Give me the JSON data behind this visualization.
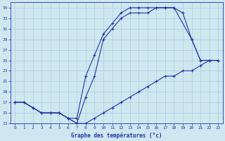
{
  "title": "Graphe des températures (°c)",
  "bg_color": "#cfe8f0",
  "grid_color": "#aaccdd",
  "line_color": "#2233aa",
  "xlim": [
    -0.5,
    23.5
  ],
  "ylim": [
    13,
    36
  ],
  "xticks": [
    0,
    1,
    2,
    3,
    4,
    5,
    6,
    7,
    8,
    9,
    10,
    11,
    12,
    13,
    14,
    15,
    16,
    17,
    18,
    19,
    20,
    21,
    22,
    23
  ],
  "yticks": [
    13,
    15,
    17,
    19,
    21,
    23,
    25,
    27,
    29,
    31,
    33,
    35
  ],
  "line1_x": [
    0,
    1,
    2,
    3,
    4,
    5,
    6,
    7,
    8,
    9,
    10,
    11,
    12,
    13,
    14,
    15,
    16,
    17,
    18,
    20,
    21,
    22,
    23
  ],
  "line1_y": [
    17,
    17,
    16,
    15,
    15,
    15,
    14,
    14,
    22,
    26,
    30,
    32,
    34,
    35,
    35,
    35,
    35,
    35,
    35,
    29,
    25,
    25,
    25
  ],
  "line2_x": [
    0,
    1,
    2,
    3,
    4,
    5,
    6,
    7,
    8,
    9,
    10,
    11,
    12,
    13,
    14,
    15,
    16,
    17,
    18,
    19,
    20,
    21,
    22,
    23
  ],
  "line2_y": [
    17,
    17,
    16,
    15,
    15,
    15,
    14,
    13,
    18,
    22,
    29,
    31,
    33,
    34,
    34,
    34,
    35,
    35,
    35,
    34,
    29,
    25,
    25,
    25
  ],
  "line3_x": [
    0,
    1,
    2,
    3,
    4,
    5,
    6,
    7,
    8,
    9,
    10,
    11,
    12,
    13,
    14,
    15,
    16,
    17,
    18,
    19,
    20,
    21,
    22,
    23
  ],
  "line3_y": [
    17,
    17,
    16,
    15,
    15,
    15,
    14,
    13,
    13,
    14,
    15,
    16,
    17,
    18,
    19,
    20,
    21,
    22,
    22,
    23,
    23,
    24,
    25,
    25
  ]
}
